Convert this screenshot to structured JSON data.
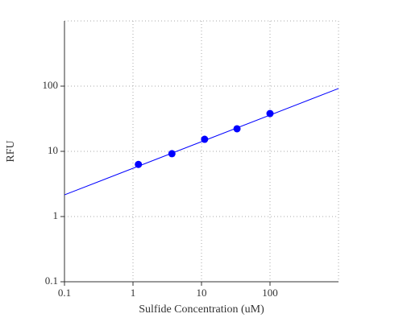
{
  "chart_data": {
    "type": "scatter",
    "x_label": "Sulfide Concentration (uM)",
    "y_label": "RFU",
    "log_x": true,
    "log_y": true,
    "grid": true,
    "xlim": [
      0.1,
      1000
    ],
    "ylim": [
      0.1,
      1000
    ],
    "xticks": [
      0.1,
      1,
      10,
      100
    ],
    "yticks": [
      0.1,
      1,
      10,
      100
    ],
    "points": {
      "color": "#0000ff",
      "x": [
        1.2,
        3.7,
        11.1,
        33,
        100
      ],
      "values": [
        6.3,
        9.2,
        15.3,
        22.2,
        38
      ]
    },
    "fit": {
      "color": "#0000ff",
      "x": [
        0.1,
        1000
      ],
      "values": [
        2.15,
        92
      ]
    }
  }
}
